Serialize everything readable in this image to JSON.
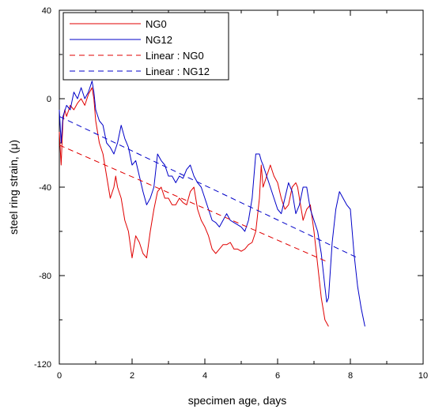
{
  "chart_data": {
    "type": "line",
    "xlabel": "specimen age, days",
    "ylabel": "steel ring strain, (μ)",
    "xlim": [
      0,
      10
    ],
    "ylim": [
      -120,
      40
    ],
    "xticks": [
      0,
      2,
      4,
      6,
      8,
      10
    ],
    "yticks": [
      40,
      0,
      -40,
      -80,
      -120
    ],
    "legend": {
      "position": "top-left",
      "entries": [
        "NG0",
        "NG12",
        "Linear : NG0",
        "Linear : NG12"
      ]
    },
    "grid": false,
    "colors": {
      "NG0": "#e00000",
      "NG12": "#0000c8",
      "linear_NG0": "#e00000",
      "linear_NG12": "#0000c8"
    },
    "series": [
      {
        "name": "NG0",
        "style": "solid",
        "x": [
          0.0,
          0.05,
          0.1,
          0.15,
          0.2,
          0.3,
          0.4,
          0.5,
          0.6,
          0.7,
          0.8,
          0.9,
          0.95,
          1.0,
          1.1,
          1.2,
          1.3,
          1.4,
          1.5,
          1.55,
          1.6,
          1.7,
          1.8,
          1.9,
          2.0,
          2.1,
          2.2,
          2.3,
          2.4,
          2.5,
          2.6,
          2.7,
          2.8,
          2.9,
          3.0,
          3.1,
          3.2,
          3.3,
          3.4,
          3.5,
          3.6,
          3.7,
          3.8,
          3.9,
          4.0,
          4.1,
          4.2,
          4.3,
          4.4,
          4.5,
          4.6,
          4.7,
          4.8,
          4.9,
          5.0,
          5.1,
          5.2,
          5.3,
          5.4,
          5.5,
          5.55,
          5.6,
          5.7,
          5.8,
          5.9,
          6.0,
          6.1,
          6.2,
          6.3,
          6.4,
          6.5,
          6.55,
          6.6,
          6.7,
          6.8,
          6.9,
          7.0,
          7.1,
          7.2,
          7.3,
          7.4
        ],
        "y": [
          -15,
          -30,
          -10,
          -5,
          -8,
          -3,
          -5,
          -2,
          0,
          -3,
          2,
          5,
          0,
          -10,
          -20,
          -25,
          -35,
          -45,
          -40,
          -35,
          -40,
          -45,
          -55,
          -60,
          -72,
          -62,
          -65,
          -70,
          -72,
          -60,
          -50,
          -42,
          -40,
          -45,
          -45,
          -48,
          -48,
          -45,
          -47,
          -48,
          -42,
          -40,
          -50,
          -55,
          -58,
          -62,
          -68,
          -70,
          -68,
          -66,
          -66,
          -65,
          -68,
          -68,
          -69,
          -68,
          -66,
          -65,
          -60,
          -45,
          -30,
          -40,
          -35,
          -30,
          -35,
          -38,
          -45,
          -50,
          -48,
          -40,
          -38,
          -40,
          -45,
          -55,
          -50,
          -48,
          -60,
          -75,
          -90,
          -100,
          -103
        ]
      },
      {
        "name": "NG12",
        "style": "solid",
        "x": [
          0.0,
          0.05,
          0.1,
          0.2,
          0.3,
          0.4,
          0.5,
          0.6,
          0.7,
          0.8,
          0.9,
          0.95,
          1.0,
          1.1,
          1.2,
          1.3,
          1.4,
          1.5,
          1.6,
          1.7,
          1.8,
          1.9,
          2.0,
          2.1,
          2.2,
          2.3,
          2.4,
          2.5,
          2.6,
          2.7,
          2.8,
          2.9,
          3.0,
          3.1,
          3.2,
          3.3,
          3.4,
          3.5,
          3.6,
          3.7,
          3.8,
          3.9,
          4.0,
          4.1,
          4.2,
          4.3,
          4.4,
          4.5,
          4.6,
          4.7,
          4.8,
          4.9,
          5.0,
          5.1,
          5.2,
          5.3,
          5.4,
          5.5,
          5.55,
          5.6,
          5.7,
          5.8,
          5.9,
          6.0,
          6.1,
          6.2,
          6.3,
          6.4,
          6.5,
          6.6,
          6.7,
          6.8,
          6.9,
          7.0,
          7.1,
          7.2,
          7.3,
          7.35,
          7.4,
          7.5,
          7.6,
          7.7,
          7.8,
          7.9,
          8.0,
          8.1,
          8.2,
          8.3,
          8.4
        ],
        "y": [
          -5,
          -20,
          -8,
          -3,
          -5,
          3,
          0,
          5,
          0,
          3,
          8,
          3,
          -5,
          -10,
          -12,
          -20,
          -22,
          -25,
          -20,
          -12,
          -18,
          -22,
          -30,
          -28,
          -35,
          -42,
          -48,
          -45,
          -40,
          -25,
          -28,
          -30,
          -35,
          -35,
          -38,
          -35,
          -36,
          -32,
          -30,
          -35,
          -38,
          -40,
          -45,
          -50,
          -55,
          -56,
          -58,
          -55,
          -52,
          -55,
          -56,
          -57,
          -58,
          -60,
          -55,
          -45,
          -25,
          -25,
          -28,
          -30,
          -35,
          -40,
          -45,
          -50,
          -52,
          -45,
          -38,
          -42,
          -52,
          -48,
          -40,
          -40,
          -50,
          -55,
          -60,
          -70,
          -85,
          -92,
          -90,
          -65,
          -50,
          -42,
          -45,
          -48,
          -50,
          -70,
          -85,
          -95,
          -103
        ]
      },
      {
        "name": "Linear : NG0",
        "style": "dashed",
        "x": [
          0.0,
          7.4
        ],
        "y": [
          -21,
          -74
        ]
      },
      {
        "name": "Linear : NG12",
        "style": "dashed",
        "x": [
          0.0,
          8.2
        ],
        "y": [
          -8,
          -72
        ]
      }
    ]
  }
}
